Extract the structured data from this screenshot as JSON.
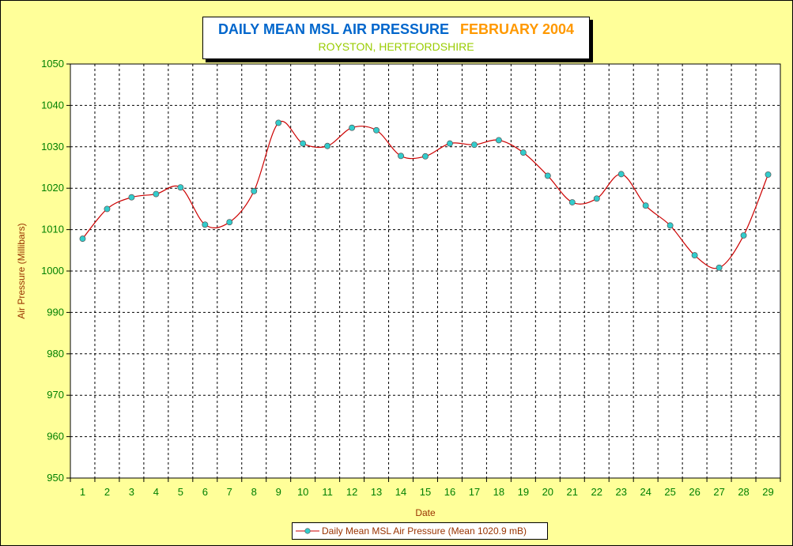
{
  "chart_data": {
    "type": "line",
    "title": "DAILY MEAN MSL AIR PRESSURE",
    "title_date": "FEBRUARY 2004",
    "subtitle": "ROYSTON, HERTFORDSHIRE",
    "xlabel": "Date",
    "ylabel": "Air Pressure (Millibars)",
    "ylim": [
      950,
      1050
    ],
    "y_ticks": [
      "950",
      "960",
      "970",
      "980",
      "990",
      "1000",
      "1010",
      "1020",
      "1030",
      "1040",
      "1050"
    ],
    "categories": [
      "1",
      "2",
      "3",
      "4",
      "5",
      "6",
      "7",
      "8",
      "9",
      "10",
      "11",
      "12",
      "13",
      "14",
      "15",
      "16",
      "17",
      "18",
      "19",
      "20",
      "21",
      "22",
      "23",
      "24",
      "25",
      "26",
      "27",
      "28",
      "29"
    ],
    "grid": true,
    "legend_position": "bottom",
    "series": [
      {
        "name": "Daily Mean MSL Air Pressure (Mean 1020.9 mB)",
        "values": [
          1007.8,
          1015.0,
          1017.8,
          1018.6,
          1020.2,
          1011.2,
          1011.8,
          1019.3,
          1035.8,
          1030.8,
          1030.2,
          1034.6,
          1034.0,
          1027.8,
          1027.7,
          1030.8,
          1030.5,
          1031.6,
          1028.6,
          1023.0,
          1016.6,
          1017.5,
          1023.4,
          1015.8,
          1011.0,
          1003.8,
          1000.8,
          1008.6,
          1023.3
        ],
        "line_color": "#cc0000",
        "marker_color": "#33cccc"
      }
    ],
    "colors": {
      "background": "#ffff99",
      "axis_text": "#008000",
      "axis_title": "#993300"
    }
  }
}
